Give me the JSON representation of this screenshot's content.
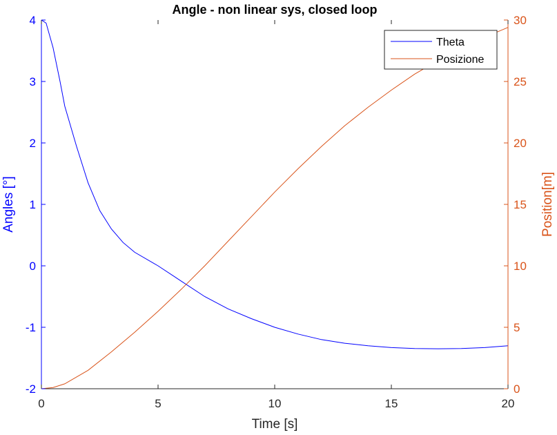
{
  "chart_data": {
    "type": "line",
    "title": "Angle - non linear sys, closed loop",
    "xlabel": "Time [s]",
    "ylabel_left": "Angles [°]",
    "ylabel_right": "Position[m]",
    "xlim": [
      0,
      20
    ],
    "ylim_left": [
      -2,
      4
    ],
    "ylim_right": [
      0,
      30
    ],
    "xticks": [
      "0",
      "5",
      "10",
      "15",
      "20"
    ],
    "yticks_left": [
      "-2",
      "-1",
      "0",
      "1",
      "2",
      "3",
      "4"
    ],
    "yticks_right": [
      "0",
      "5",
      "10",
      "15",
      "20",
      "25",
      "30"
    ],
    "grid": false,
    "legend_position": "top-right",
    "colors": {
      "left": "#0000ff",
      "right": "#d95319",
      "axis": "#262626"
    },
    "series": [
      {
        "name": "Theta",
        "axis": "left",
        "color": "#0000ff",
        "x": [
          0,
          0.2,
          0.5,
          0.8,
          1.0,
          1.5,
          2.0,
          2.5,
          3.0,
          3.5,
          4.0,
          5.0,
          6.0,
          7.0,
          8.0,
          9.0,
          10.0,
          11.0,
          12.0,
          13.0,
          14.0,
          15.0,
          16.0,
          17.0,
          18.0,
          19.0,
          20.0
        ],
        "y": [
          4.0,
          3.95,
          3.55,
          3.0,
          2.6,
          1.95,
          1.35,
          0.9,
          0.6,
          0.38,
          0.22,
          0.0,
          -0.25,
          -0.5,
          -0.7,
          -0.86,
          -1.0,
          -1.11,
          -1.2,
          -1.26,
          -1.3,
          -1.33,
          -1.345,
          -1.35,
          -1.345,
          -1.33,
          -1.3
        ]
      },
      {
        "name": "Posizione",
        "axis": "right",
        "color": "#d95319",
        "x": [
          0,
          0.5,
          1,
          2,
          3,
          4,
          5,
          6,
          7,
          8,
          9,
          10,
          11,
          12,
          13,
          14,
          15,
          16,
          17,
          18,
          19,
          20
        ],
        "y": [
          0,
          0.1,
          0.4,
          1.5,
          3.0,
          4.6,
          6.3,
          8.1,
          10.0,
          12.0,
          14.0,
          16.0,
          17.9,
          19.7,
          21.4,
          22.9,
          24.3,
          25.6,
          26.7,
          27.7,
          28.6,
          29.4
        ]
      }
    ]
  }
}
